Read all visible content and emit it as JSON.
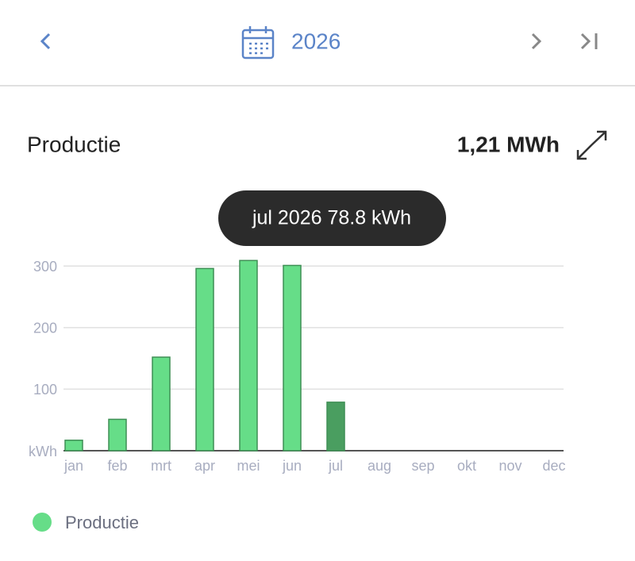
{
  "header": {
    "year": "2026"
  },
  "summary": {
    "title": "Productie",
    "total": "1,21 MWh"
  },
  "tooltip": "jul 2026 78.8 kWh",
  "chart_data": {
    "type": "bar",
    "categories": [
      "jan",
      "feb",
      "mrt",
      "apr",
      "mei",
      "jun",
      "jul",
      "aug",
      "sep",
      "okt",
      "nov",
      "dec"
    ],
    "series": [
      {
        "name": "Productie",
        "color": "#66dd88",
        "values": [
          17,
          51,
          152,
          296,
          309,
          301,
          78.8,
          null,
          null,
          null,
          null,
          null
        ]
      }
    ],
    "colors": [
      "#66dd88",
      "#66dd88",
      "#66dd88",
      "#66dd88",
      "#66dd88",
      "#66dd88",
      "#4a9e60",
      "#66dd88",
      "#66dd88",
      "#66dd88",
      "#66dd88",
      "#66dd88"
    ],
    "ylim": [
      0,
      330
    ],
    "yticks": [
      {
        "value": 0,
        "label": "kWh"
      },
      100,
      200,
      300
    ],
    "grid": true
  }
}
